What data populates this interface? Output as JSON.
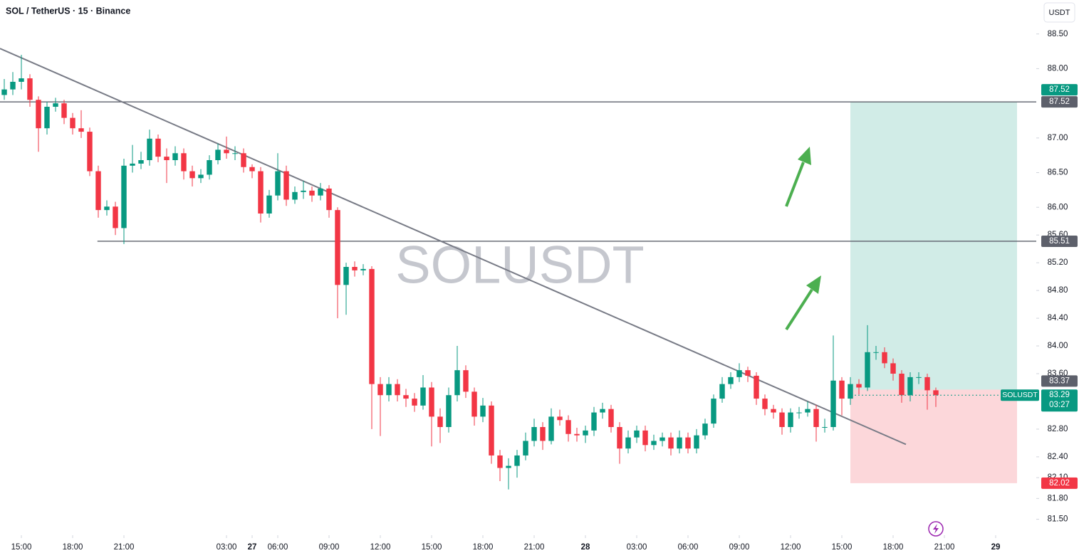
{
  "chart_data": {
    "type": "candlestick",
    "title": "SOL / TetherUS · 15 · Binance",
    "watermark": "SOLUSDT",
    "currency_button": "USDT",
    "up_color": "#089981",
    "down_color": "#f23645",
    "grid": false,
    "xlim": [
      -2.5,
      118.75
    ],
    "ylim": [
      81.29,
      88.99
    ],
    "xticks": [
      {
        "value": 0,
        "label": "15:00"
      },
      {
        "value": 6,
        "label": "18:00"
      },
      {
        "value": 12,
        "label": "21:00"
      },
      27,
      {
        "value": 24,
        "label": "03:00"
      },
      {
        "value": 30,
        "label": "06:00"
      },
      {
        "value": 36,
        "label": "09:00"
      },
      {
        "value": 42,
        "label": "12:00"
      },
      {
        "value": 48,
        "label": "15:00"
      },
      {
        "value": 54,
        "label": "18:00"
      },
      {
        "value": 60,
        "label": "21:00"
      },
      {
        "value": 66,
        "label": "28"
      },
      {
        "value": 72,
        "label": "03:00"
      },
      {
        "value": 78,
        "label": "06:00"
      },
      {
        "value": 84,
        "label": "09:00"
      },
      {
        "value": 90,
        "label": "12:00"
      },
      {
        "value": 96,
        "label": "15:00"
      },
      {
        "value": 102,
        "label": "18:00"
      },
      {
        "value": 108,
        "label": "21:00"
      },
      {
        "value": 114,
        "label": "29"
      }
    ],
    "yticks": [
      {
        "value": 88.5,
        "label": "88.50"
      },
      {
        "value": 88.0,
        "label": "88.00"
      },
      {
        "value": 87.0,
        "label": "87.00"
      },
      {
        "value": 86.5,
        "label": "86.50"
      },
      {
        "value": 86.0,
        "label": "86.00"
      },
      {
        "value": 85.6,
        "label": "85.60"
      },
      {
        "value": 85.2,
        "label": "85.20"
      },
      {
        "value": 84.8,
        "label": "84.80"
      },
      {
        "value": 84.4,
        "label": "84.40"
      },
      {
        "value": 84.0,
        "label": "84.00"
      },
      {
        "value": 83.6,
        "label": "83.60"
      },
      {
        "value": 82.8,
        "label": "82.80"
      },
      {
        "value": 82.4,
        "label": "82.40"
      },
      {
        "value": 82.1,
        "label": "82.10"
      },
      {
        "value": 81.8,
        "label": "81.80"
      },
      {
        "value": 81.5,
        "label": "81.50"
      }
    ],
    "x": [
      -2,
      -1,
      0,
      1,
      2,
      3,
      4,
      5,
      6,
      7,
      8,
      9,
      10,
      11,
      12,
      13,
      14,
      15,
      16,
      17,
      18,
      19,
      20,
      21,
      22,
      23,
      24,
      25,
      26,
      27,
      28,
      29,
      30,
      31,
      32,
      33,
      34,
      35,
      36,
      37,
      38,
      39,
      40,
      41,
      42,
      43,
      44,
      45,
      46,
      47,
      48,
      49,
      50,
      51,
      52,
      53,
      54,
      55,
      56,
      57,
      58,
      59,
      60,
      61,
      62,
      63,
      64,
      65,
      66,
      67,
      68,
      69,
      70,
      71,
      72,
      73,
      74,
      75,
      76,
      77,
      78,
      79,
      80,
      81,
      82,
      83,
      84,
      85,
      86,
      87,
      88,
      89,
      90,
      91,
      92,
      93,
      94,
      95,
      96,
      97,
      98,
      99,
      100,
      101,
      102,
      103,
      104,
      105,
      106,
      107
    ],
    "candles": {
      "open": [
        87.62,
        87.7,
        87.81,
        87.86,
        87.55,
        87.14,
        87.45,
        87.5,
        87.29,
        87.14,
        87.09,
        86.52,
        85.96,
        86.01,
        85.7,
        86.6,
        86.63,
        86.68,
        86.99,
        86.73,
        86.68,
        86.78,
        86.52,
        86.42,
        86.47,
        86.68,
        86.83,
        86.78,
        86.78,
        86.58,
        86.52,
        85.91,
        86.17,
        86.52,
        86.11,
        86.22,
        86.24,
        86.17,
        86.27,
        85.96,
        84.88,
        85.14,
        85.09,
        85.11,
        83.45,
        83.29,
        83.45,
        83.29,
        83.24,
        83.14,
        83.4,
        82.98,
        82.83,
        83.29,
        83.65,
        83.34,
        82.98,
        83.14,
        82.42,
        82.24,
        82.27,
        82.42,
        82.63,
        82.83,
        82.63,
        82.98,
        82.93,
        82.73,
        82.71,
        82.78,
        83.04,
        83.09,
        82.83,
        82.52,
        82.68,
        82.78,
        82.57,
        82.63,
        82.68,
        82.52,
        82.68,
        82.52,
        82.71,
        82.88,
        83.24,
        83.45,
        83.55,
        83.65,
        83.57,
        83.24,
        83.09,
        83.04,
        82.83,
        83.04,
        83.04,
        83.09,
        82.83,
        82.83,
        83.5,
        83.24,
        83.45,
        83.4,
        83.91,
        83.91,
        83.75,
        83.6,
        83.29,
        83.55,
        83.55,
        83.36
      ],
      "high": [
        87.85,
        87.95,
        88.2,
        87.92,
        87.6,
        87.52,
        87.58,
        87.55,
        87.36,
        87.4,
        87.15,
        86.6,
        86.1,
        86.08,
        86.7,
        86.9,
        86.8,
        87.12,
        87.05,
        86.85,
        86.88,
        86.85,
        86.6,
        86.55,
        86.75,
        86.92,
        87.02,
        86.88,
        86.85,
        86.62,
        86.58,
        86.25,
        86.78,
        86.6,
        86.3,
        86.38,
        86.3,
        86.35,
        86.32,
        86.0,
        85.2,
        85.22,
        85.18,
        85.15,
        83.55,
        83.55,
        83.52,
        83.38,
        83.32,
        83.58,
        83.48,
        83.1,
        83.4,
        84.0,
        83.72,
        83.4,
        83.25,
        83.2,
        82.5,
        82.38,
        82.5,
        82.75,
        82.95,
        82.9,
        83.1,
        83.08,
        83.0,
        82.82,
        82.85,
        83.12,
        83.18,
        83.15,
        82.9,
        82.78,
        82.85,
        82.85,
        82.72,
        82.75,
        82.75,
        82.78,
        82.75,
        82.8,
        82.95,
        83.3,
        83.55,
        83.62,
        83.75,
        83.7,
        83.62,
        83.3,
        83.15,
        83.1,
        83.1,
        83.12,
        83.2,
        83.15,
        82.95,
        84.15,
        83.55,
        83.55,
        83.52,
        84.3,
        84.0,
        83.98,
        83.82,
        83.65,
        83.62,
        83.62,
        83.6,
        83.4
      ],
      "low": [
        87.55,
        87.62,
        87.7,
        87.45,
        86.8,
        87.05,
        87.38,
        87.2,
        87.05,
        87.0,
        86.45,
        85.85,
        85.88,
        85.6,
        85.47,
        86.5,
        86.55,
        86.6,
        86.65,
        86.35,
        86.6,
        86.4,
        86.3,
        86.35,
        86.4,
        86.62,
        86.7,
        86.68,
        86.5,
        86.42,
        85.78,
        85.85,
        86.1,
        86.02,
        86.05,
        86.12,
        86.08,
        86.1,
        85.85,
        84.4,
        84.45,
        85.0,
        85.02,
        82.8,
        82.7,
        83.2,
        83.2,
        83.12,
        83.05,
        83.08,
        82.55,
        82.6,
        82.75,
        83.2,
        83.25,
        82.85,
        82.9,
        82.3,
        82.05,
        81.93,
        82.1,
        82.35,
        82.55,
        82.5,
        82.58,
        82.85,
        82.62,
        82.62,
        82.6,
        82.7,
        82.95,
        82.75,
        82.3,
        82.45,
        82.6,
        82.48,
        82.5,
        82.55,
        82.42,
        82.45,
        82.45,
        82.45,
        82.65,
        82.82,
        83.18,
        83.38,
        83.48,
        83.48,
        83.15,
        83.0,
        82.95,
        82.72,
        82.75,
        82.95,
        82.98,
        82.62,
        82.75,
        82.78,
        83.0,
        83.15,
        83.3,
        83.35,
        83.8,
        83.68,
        83.5,
        83.18,
        83.2,
        83.45,
        83.08,
        83.12
      ],
      "close": [
        87.7,
        87.81,
        87.86,
        87.55,
        87.14,
        87.45,
        87.5,
        87.29,
        87.14,
        87.09,
        86.52,
        85.96,
        86.01,
        85.7,
        86.6,
        86.63,
        86.68,
        86.99,
        86.73,
        86.68,
        86.78,
        86.52,
        86.42,
        86.47,
        86.68,
        86.83,
        86.78,
        86.78,
        86.58,
        86.52,
        85.91,
        86.17,
        86.52,
        86.11,
        86.22,
        86.24,
        86.17,
        86.27,
        85.96,
        84.88,
        85.14,
        85.09,
        85.11,
        83.45,
        83.29,
        83.45,
        83.29,
        83.24,
        83.14,
        83.4,
        82.98,
        82.83,
        83.29,
        83.65,
        83.34,
        82.98,
        83.14,
        82.42,
        82.24,
        82.27,
        82.42,
        82.63,
        82.83,
        82.63,
        82.98,
        82.93,
        82.73,
        82.71,
        82.78,
        83.04,
        83.09,
        82.83,
        82.52,
        82.68,
        82.78,
        82.57,
        82.63,
        82.68,
        82.52,
        82.68,
        82.52,
        82.71,
        82.88,
        83.24,
        83.45,
        83.55,
        83.65,
        83.57,
        83.24,
        83.09,
        83.04,
        82.83,
        83.04,
        83.04,
        83.09,
        82.83,
        82.83,
        83.5,
        83.24,
        83.45,
        83.4,
        83.91,
        83.91,
        83.75,
        83.6,
        83.29,
        83.55,
        83.55,
        83.36,
        83.29
      ]
    },
    "levels": [
      {
        "value": 87.52,
        "from": -2.5
      },
      {
        "value": 85.51,
        "from": 8.9
      }
    ],
    "trendline": {
      "x": [
        -2.5,
        103.5
      ],
      "y": [
        88.29,
        82.58
      ]
    },
    "position": {
      "entry": 83.37,
      "target": 87.52,
      "stop": 82.02,
      "x": [
        97,
        116.5
      ]
    },
    "last_price": {
      "value": 83.29,
      "countdown": "03:27",
      "symbol": "SOLUSDT"
    }
  }
}
